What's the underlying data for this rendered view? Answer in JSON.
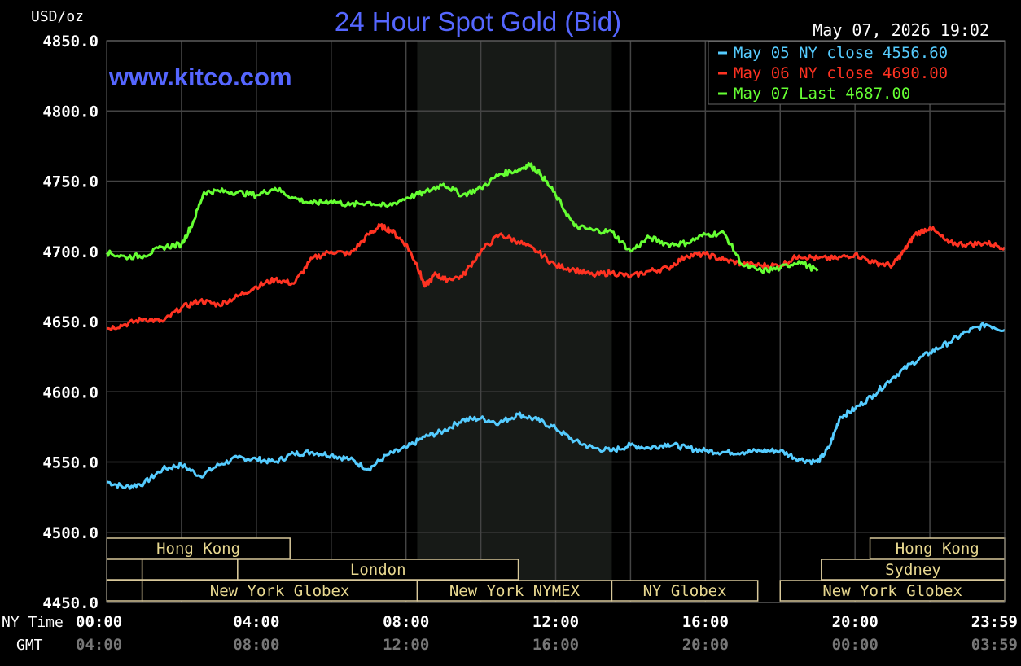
{
  "chart_data": {
    "type": "line",
    "title": "24 Hour Spot Gold (Bid)",
    "unit_label": "USD/oz",
    "timestamp": "May 07, 2026 19:02",
    "watermark": "www.kitco.com",
    "ylim": [
      4450,
      4850
    ],
    "y_ticks": [
      "4850.0",
      "4800.0",
      "4750.0",
      "4700.0",
      "4650.0",
      "4600.0",
      "4550.0",
      "4500.0",
      "4450.0"
    ],
    "x_hours_range": [
      0,
      24
    ],
    "x_rows": [
      {
        "label": "NY Time",
        "ticks": [
          "00:00",
          "04:00",
          "08:00",
          "12:00",
          "16:00",
          "20:00",
          "23:59"
        ],
        "color": "#ffffff"
      },
      {
        "label": "GMT",
        "ticks": [
          "04:00",
          "08:00",
          "12:00",
          "16:00",
          "20:00",
          "00:00",
          "03:59"
        ],
        "color": "#777777"
      }
    ],
    "tick_hours": [
      0,
      4,
      8,
      12,
      16,
      20,
      23.98
    ],
    "grid_hours": [
      2,
      4,
      6,
      8,
      10,
      12,
      14,
      16,
      18,
      20,
      22
    ],
    "shaded_hours": [
      8.3,
      13.5
    ],
    "grid": true,
    "legend_position": "top-right",
    "series": [
      {
        "name": "May 05 NY close 4556.60",
        "color": "#55ccff",
        "points": [
          [
            0,
            4536
          ],
          [
            0.5,
            4532
          ],
          [
            1,
            4535
          ],
          [
            1.5,
            4545
          ],
          [
            2,
            4548
          ],
          [
            2.5,
            4540
          ],
          [
            3,
            4548
          ],
          [
            3.5,
            4553
          ],
          [
            4,
            4552
          ],
          [
            4.5,
            4550
          ],
          [
            5,
            4556
          ],
          [
            5.5,
            4557
          ],
          [
            6,
            4555
          ],
          [
            6.5,
            4552
          ],
          [
            7,
            4545
          ],
          [
            7.5,
            4555
          ],
          [
            8,
            4560
          ],
          [
            8.5,
            4568
          ],
          [
            9,
            4572
          ],
          [
            9.5,
            4580
          ],
          [
            10,
            4581
          ],
          [
            10.5,
            4578
          ],
          [
            11,
            4584
          ],
          [
            11.5,
            4580
          ],
          [
            12,
            4574
          ],
          [
            12.5,
            4565
          ],
          [
            13,
            4560
          ],
          [
            13.5,
            4558
          ],
          [
            14,
            4562
          ],
          [
            14.5,
            4560
          ],
          [
            15,
            4563
          ],
          [
            15.5,
            4560
          ],
          [
            16,
            4558
          ],
          [
            16.5,
            4557
          ],
          [
            17,
            4557
          ],
          [
            17.5,
            4558
          ],
          [
            18,
            4558
          ],
          [
            18.5,
            4552
          ],
          [
            19,
            4550
          ],
          [
            19.3,
            4560
          ],
          [
            19.6,
            4582
          ],
          [
            20,
            4588
          ],
          [
            20.5,
            4598
          ],
          [
            21,
            4610
          ],
          [
            21.5,
            4620
          ],
          [
            22,
            4628
          ],
          [
            22.5,
            4635
          ],
          [
            23,
            4643
          ],
          [
            23.5,
            4648
          ],
          [
            24,
            4644
          ]
        ]
      },
      {
        "name": "May 06 NY close 4690.00",
        "color": "#ff3322",
        "points": [
          [
            0,
            4645
          ],
          [
            0.5,
            4648
          ],
          [
            1,
            4652
          ],
          [
            1.5,
            4650
          ],
          [
            2,
            4660
          ],
          [
            2.5,
            4665
          ],
          [
            3,
            4662
          ],
          [
            3.5,
            4668
          ],
          [
            4,
            4675
          ],
          [
            4.5,
            4680
          ],
          [
            5,
            4677
          ],
          [
            5.5,
            4695
          ],
          [
            6,
            4700
          ],
          [
            6.5,
            4698
          ],
          [
            7,
            4712
          ],
          [
            7.3,
            4718
          ],
          [
            7.6,
            4715
          ],
          [
            8,
            4705
          ],
          [
            8.3,
            4690
          ],
          [
            8.5,
            4675
          ],
          [
            8.8,
            4684
          ],
          [
            9,
            4680
          ],
          [
            9.5,
            4682
          ],
          [
            10,
            4700
          ],
          [
            10.5,
            4712
          ],
          [
            11,
            4707
          ],
          [
            11.5,
            4700
          ],
          [
            12,
            4690
          ],
          [
            12.5,
            4687
          ],
          [
            13,
            4683
          ],
          [
            13.5,
            4685
          ],
          [
            14,
            4682
          ],
          [
            14.5,
            4686
          ],
          [
            15,
            4688
          ],
          [
            15.5,
            4697
          ],
          [
            16,
            4698
          ],
          [
            16.5,
            4694
          ],
          [
            17,
            4691
          ],
          [
            17.5,
            4690
          ],
          [
            18,
            4690
          ],
          [
            18.5,
            4697
          ],
          [
            19,
            4695
          ],
          [
            19.5,
            4695
          ],
          [
            20,
            4698
          ],
          [
            20.5,
            4692
          ],
          [
            21,
            4690
          ],
          [
            21.3,
            4700
          ],
          [
            21.6,
            4712
          ],
          [
            22,
            4717
          ],
          [
            22.5,
            4706
          ],
          [
            23,
            4705
          ],
          [
            23.5,
            4706
          ],
          [
            24,
            4703
          ]
        ]
      },
      {
        "name": "May 07 Last 4687.00",
        "color": "#66ff33",
        "points": [
          [
            0,
            4699
          ],
          [
            0.5,
            4696
          ],
          [
            1,
            4697
          ],
          [
            1.5,
            4703
          ],
          [
            2,
            4705
          ],
          [
            2.3,
            4720
          ],
          [
            2.6,
            4742
          ],
          [
            3,
            4743
          ],
          [
            3.5,
            4742
          ],
          [
            4,
            4740
          ],
          [
            4.5,
            4745
          ],
          [
            5,
            4738
          ],
          [
            5.5,
            4734
          ],
          [
            6,
            4736
          ],
          [
            6.5,
            4733
          ],
          [
            7,
            4735
          ],
          [
            7.5,
            4732
          ],
          [
            8,
            4738
          ],
          [
            8.5,
            4742
          ],
          [
            9,
            4748
          ],
          [
            9.5,
            4740
          ],
          [
            10,
            4745
          ],
          [
            10.5,
            4755
          ],
          [
            11,
            4758
          ],
          [
            11.3,
            4762
          ],
          [
            11.6,
            4755
          ],
          [
            12,
            4740
          ],
          [
            12.5,
            4718
          ],
          [
            13,
            4715
          ],
          [
            13.5,
            4714
          ],
          [
            14,
            4700
          ],
          [
            14.5,
            4710
          ],
          [
            15,
            4705
          ],
          [
            15.5,
            4706
          ],
          [
            16,
            4712
          ],
          [
            16.5,
            4713
          ],
          [
            17,
            4690
          ],
          [
            17.5,
            4686
          ],
          [
            18,
            4688
          ],
          [
            18.5,
            4693
          ],
          [
            19,
            4686
          ]
        ]
      }
    ],
    "sessions": [
      {
        "row": 0,
        "start": 0,
        "end": 4.9,
        "label": "Hong Kong"
      },
      {
        "row": 0,
        "start": 20.4,
        "end": 24,
        "label": "Hong Kong"
      },
      {
        "row": 1,
        "start": 0,
        "end": 0.95,
        "label": ""
      },
      {
        "row": 1,
        "start": 0.95,
        "end": 3.5,
        "label": ""
      },
      {
        "row": 1,
        "start": 3.5,
        "end": 11,
        "label": "London"
      },
      {
        "row": 1,
        "start": 19.1,
        "end": 24,
        "label": "Sydney"
      },
      {
        "row": 2,
        "start": 0,
        "end": 0.95,
        "label": ""
      },
      {
        "row": 2,
        "start": 0.95,
        "end": 8.3,
        "label": "New York Globex"
      },
      {
        "row": 2,
        "start": 8.3,
        "end": 13.5,
        "label": "New York NYMEX"
      },
      {
        "row": 2,
        "start": 13.5,
        "end": 17.4,
        "label": "NY Globex"
      },
      {
        "row": 2,
        "start": 18.0,
        "end": 24,
        "label": "New York Globex"
      }
    ]
  }
}
